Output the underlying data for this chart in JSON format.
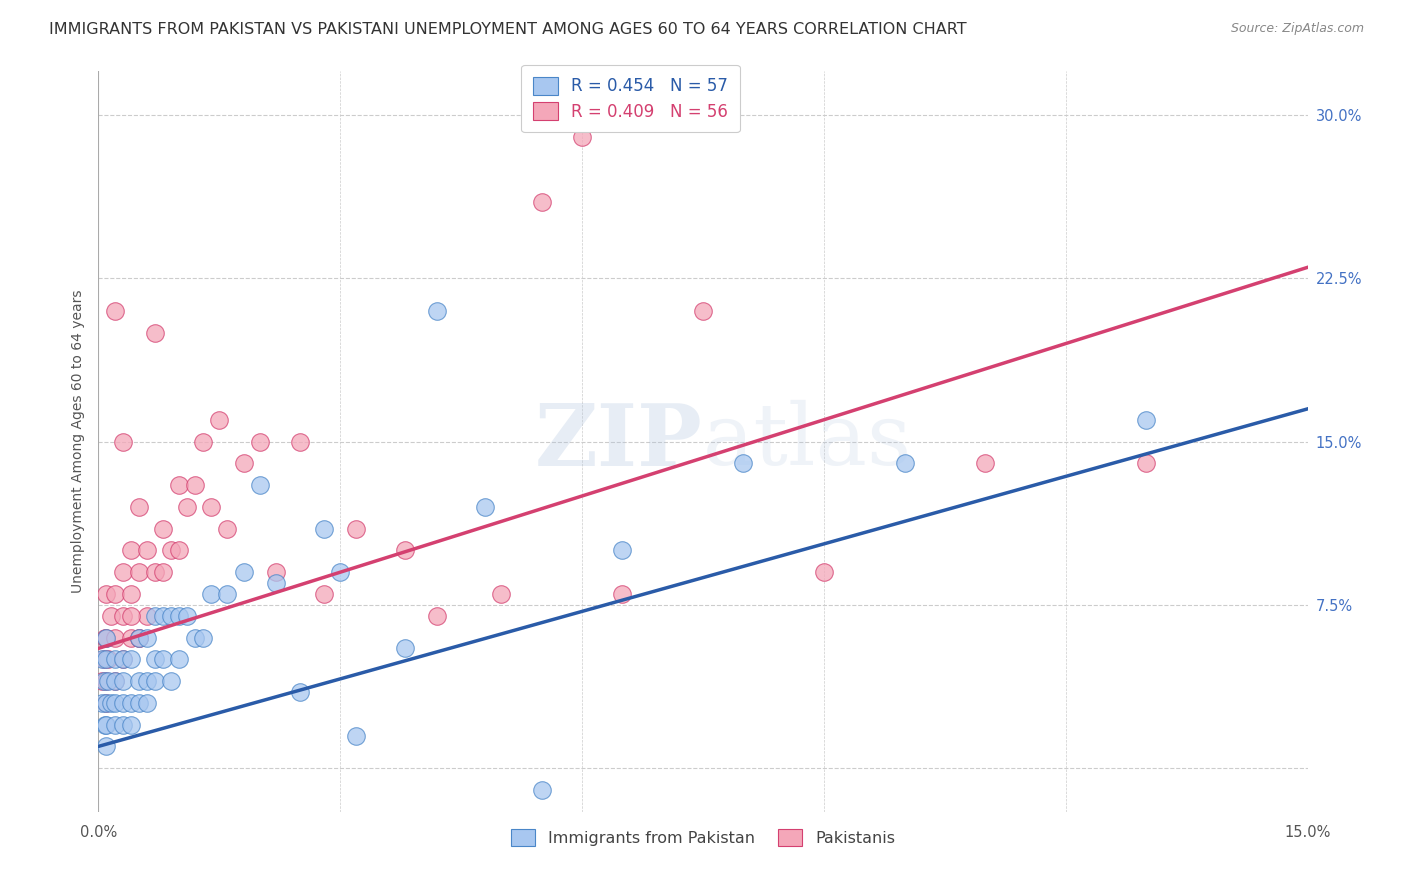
{
  "title": "IMMIGRANTS FROM PAKISTAN VS PAKISTANI UNEMPLOYMENT AMONG AGES 60 TO 64 YEARS CORRELATION CHART",
  "source": "Source: ZipAtlas.com",
  "ylabel": "Unemployment Among Ages 60 to 64 years",
  "xlim": [
    0.0,
    0.15
  ],
  "ylim": [
    -0.02,
    0.32
  ],
  "xticks": [
    0.0,
    0.03,
    0.06,
    0.09,
    0.12,
    0.15
  ],
  "xticklabels": [
    "0.0%",
    "",
    "",
    "",
    "",
    "15.0%"
  ],
  "yticks_right": [
    0.0,
    0.075,
    0.15,
    0.225,
    0.3
  ],
  "yticklabels_right": [
    "",
    "7.5%",
    "15.0%",
    "22.5%",
    "30.0%"
  ],
  "watermark_top": "ZIP",
  "watermark_bottom": "atlas",
  "blue_color": "#a8c7f0",
  "pink_color": "#f4a7b9",
  "blue_edge_color": "#4a86c8",
  "pink_edge_color": "#d44070",
  "blue_line_color": "#2a5ba8",
  "pink_line_color": "#d44070",
  "legend_text_blue": "R = 0.454   N = 57",
  "legend_text_pink": "R = 0.409   N = 56",
  "legend_label_blue": "Immigrants from Pakistan",
  "legend_label_pink": "Pakistanis",
  "blue_scatter_x": [
    0.0005,
    0.0005,
    0.0007,
    0.0008,
    0.001,
    0.001,
    0.001,
    0.001,
    0.001,
    0.0012,
    0.0015,
    0.002,
    0.002,
    0.002,
    0.002,
    0.003,
    0.003,
    0.003,
    0.003,
    0.004,
    0.004,
    0.004,
    0.005,
    0.005,
    0.005,
    0.006,
    0.006,
    0.006,
    0.007,
    0.007,
    0.007,
    0.008,
    0.008,
    0.009,
    0.009,
    0.01,
    0.01,
    0.011,
    0.012,
    0.013,
    0.014,
    0.016,
    0.018,
    0.02,
    0.022,
    0.025,
    0.028,
    0.03,
    0.032,
    0.038,
    0.042,
    0.048,
    0.055,
    0.065,
    0.08,
    0.1,
    0.13
  ],
  "blue_scatter_y": [
    0.03,
    0.05,
    0.04,
    0.02,
    0.01,
    0.02,
    0.03,
    0.05,
    0.06,
    0.04,
    0.03,
    0.02,
    0.03,
    0.05,
    0.04,
    0.02,
    0.03,
    0.04,
    0.05,
    0.02,
    0.03,
    0.05,
    0.03,
    0.04,
    0.06,
    0.03,
    0.04,
    0.06,
    0.04,
    0.05,
    0.07,
    0.05,
    0.07,
    0.04,
    0.07,
    0.05,
    0.07,
    0.07,
    0.06,
    0.06,
    0.08,
    0.08,
    0.09,
    0.13,
    0.085,
    0.035,
    0.11,
    0.09,
    0.015,
    0.055,
    0.21,
    0.12,
    -0.01,
    0.1,
    0.14,
    0.14,
    0.16
  ],
  "pink_scatter_x": [
    0.0005,
    0.0007,
    0.0008,
    0.001,
    0.001,
    0.001,
    0.001,
    0.0012,
    0.0015,
    0.002,
    0.002,
    0.002,
    0.003,
    0.003,
    0.003,
    0.004,
    0.004,
    0.004,
    0.005,
    0.005,
    0.005,
    0.006,
    0.006,
    0.007,
    0.007,
    0.008,
    0.008,
    0.009,
    0.01,
    0.01,
    0.011,
    0.012,
    0.013,
    0.014,
    0.015,
    0.016,
    0.018,
    0.02,
    0.022,
    0.025,
    0.028,
    0.032,
    0.038,
    0.042,
    0.05,
    0.055,
    0.06,
    0.065,
    0.075,
    0.09,
    0.11,
    0.13,
    0.002,
    0.003,
    0.004,
    0.005
  ],
  "pink_scatter_y": [
    0.04,
    0.05,
    0.06,
    0.03,
    0.04,
    0.06,
    0.08,
    0.05,
    0.07,
    0.04,
    0.06,
    0.08,
    0.05,
    0.07,
    0.09,
    0.06,
    0.08,
    0.1,
    0.06,
    0.09,
    0.12,
    0.07,
    0.1,
    0.09,
    0.2,
    0.09,
    0.11,
    0.1,
    0.1,
    0.13,
    0.12,
    0.13,
    0.15,
    0.12,
    0.16,
    0.11,
    0.14,
    0.15,
    0.09,
    0.15,
    0.08,
    0.11,
    0.1,
    0.07,
    0.08,
    0.26,
    0.29,
    0.08,
    0.21,
    0.09,
    0.14,
    0.14,
    0.21,
    0.15,
    0.07,
    0.06
  ],
  "blue_trend_y0": 0.01,
  "blue_trend_y1": 0.165,
  "pink_trend_y0": 0.055,
  "pink_trend_y1": 0.23,
  "background_color": "#ffffff",
  "grid_color": "#cccccc",
  "title_fontsize": 11.5,
  "axis_label_fontsize": 10,
  "tick_fontsize": 10.5,
  "legend_fontsize": 12
}
